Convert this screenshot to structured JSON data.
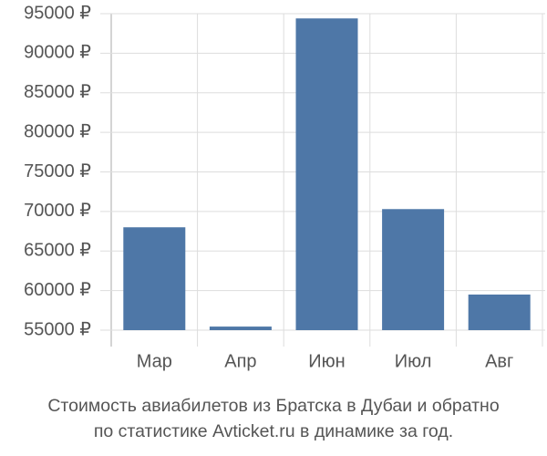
{
  "chart_data": {
    "type": "bar",
    "title": "Стоимость авиабилетов из Братска в Дубаи и обратно",
    "subtitle": "по статистике Avticket.ru в динамике за год.",
    "categories": [
      "Мар",
      "Апр",
      "Июн",
      "Июл",
      "Авг"
    ],
    "values": [
      68000,
      55450,
      94400,
      70300,
      59500
    ],
    "color": "#4e77a7",
    "ylim": [
      55000,
      95000
    ],
    "yticks": [
      {
        "value": 55000,
        "label": "55000 ₽"
      },
      {
        "value": 60000,
        "label": "60000 ₽"
      },
      {
        "value": 65000,
        "label": "65000 ₽"
      },
      {
        "value": 70000,
        "label": "70000 ₽"
      },
      {
        "value": 75000,
        "label": "75000 ₽"
      },
      {
        "value": 80000,
        "label": "80000 ₽"
      },
      {
        "value": 85000,
        "label": "85000 ₽"
      },
      {
        "value": 90000,
        "label": "90000 ₽"
      },
      {
        "value": 95000,
        "label": "95000 ₽"
      }
    ],
    "grid": true
  }
}
